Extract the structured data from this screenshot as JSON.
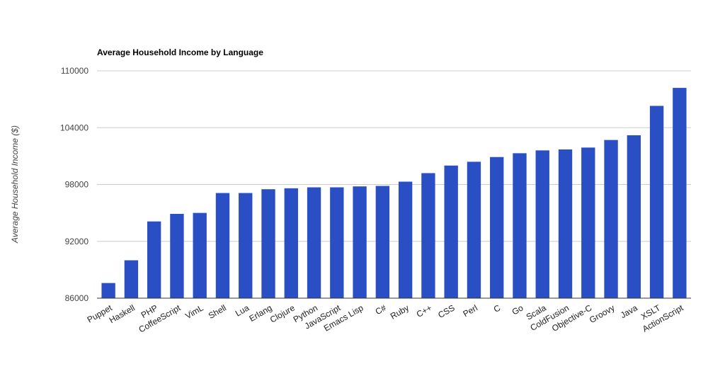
{
  "chart_data": {
    "type": "bar",
    "title": "Average Household Income by Language",
    "xlabel": "",
    "ylabel": "Average Household Income ($)",
    "ylim": [
      86000,
      110000
    ],
    "yticks": [
      86000,
      92000,
      98000,
      104000,
      110000
    ],
    "grid": true,
    "legend": "none",
    "bar_color": "#2a4fc4",
    "categories": [
      "Puppet",
      "Haskell",
      "PHP",
      "CoffeeScript",
      "VimL",
      "Shell",
      "Lua",
      "Erlang",
      "Clojure",
      "Python",
      "JavaScript",
      "Emacs Lisp",
      "C#",
      "Ruby",
      "C++",
      "CSS",
      "Perl",
      "C",
      "Go",
      "Scala",
      "ColdFusion",
      "Objective-C",
      "Groovy",
      "Java",
      "XSLT",
      "ActionScript"
    ],
    "values": [
      87600,
      90000,
      94100,
      94900,
      95000,
      97100,
      97100,
      97500,
      97600,
      97700,
      97700,
      97800,
      97850,
      98300,
      99200,
      100000,
      100400,
      100900,
      101300,
      101600,
      101700,
      101900,
      102700,
      103200,
      106300,
      108200
    ]
  }
}
